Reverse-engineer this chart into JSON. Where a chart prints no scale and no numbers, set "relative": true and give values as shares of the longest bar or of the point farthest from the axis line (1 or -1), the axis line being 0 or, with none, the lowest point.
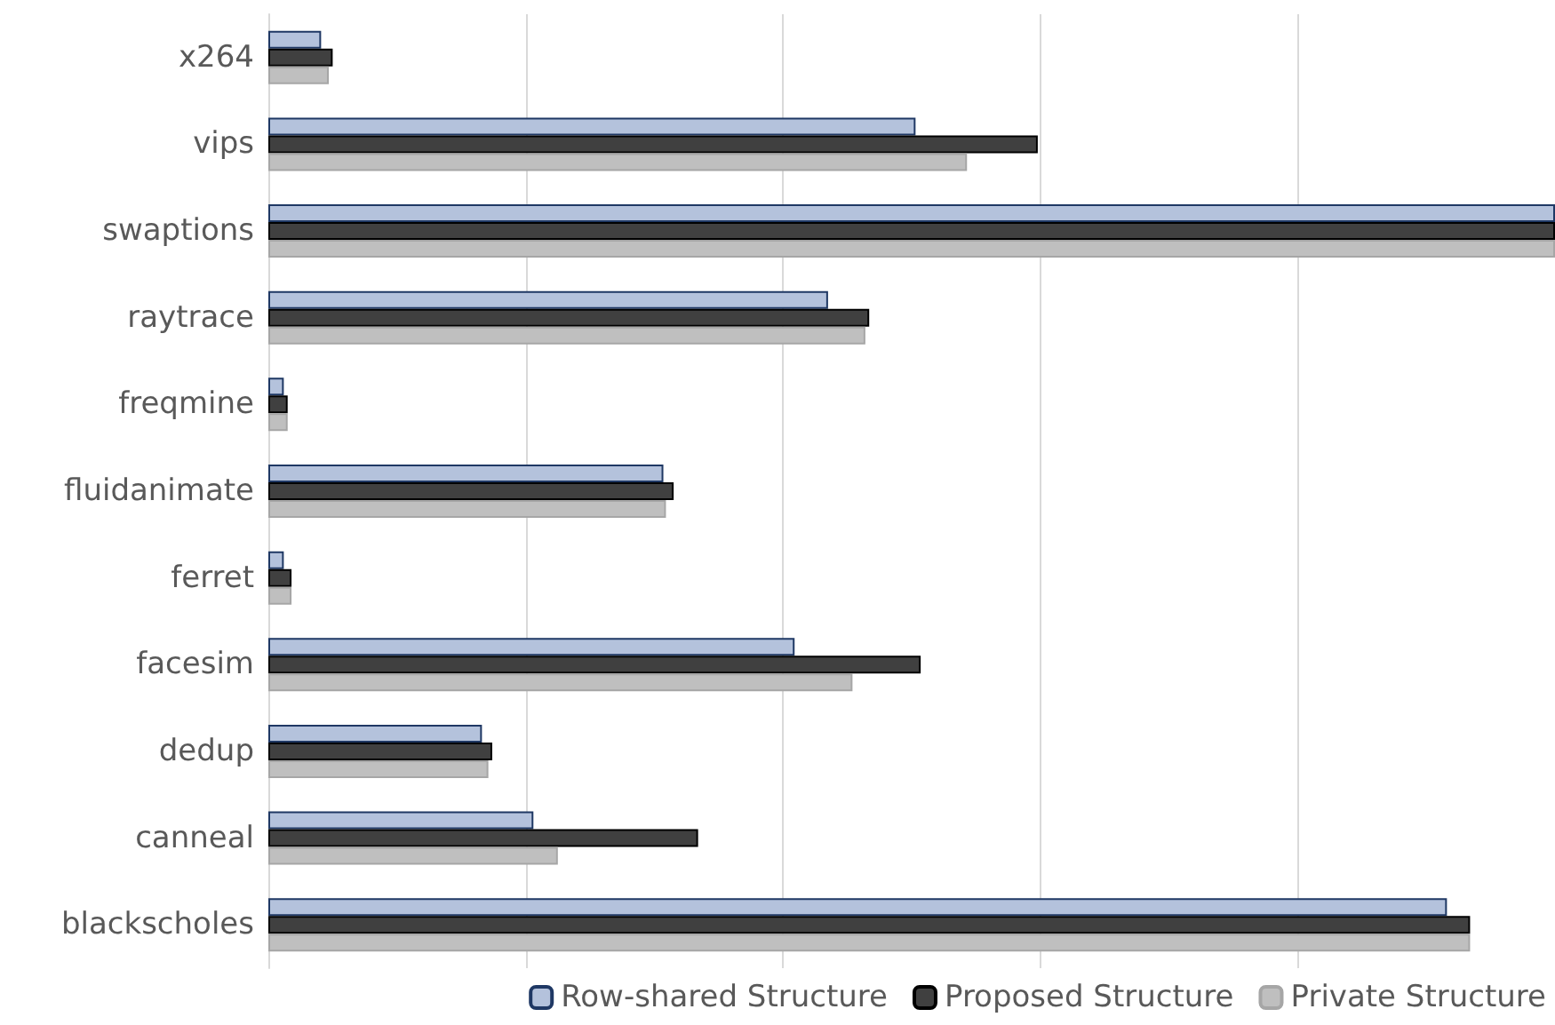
{
  "chart_data": {
    "type": "bar",
    "orientation": "horizontal",
    "relative": true,
    "grid": "x",
    "legend": "bottom",
    "categories": [
      "x264",
      "vips",
      "swaptions",
      "raytrace",
      "freqmine",
      "fluidanimate",
      "ferret",
      "facesim",
      "dedup",
      "canneal",
      "blackscholes"
    ],
    "series": [
      {
        "name": "Row-shared Structure",
        "color": "#b4c2dc",
        "values": [
          0.041,
          0.503,
          1,
          0.435,
          0.012,
          0.307,
          0.012,
          0.409,
          0.166,
          0.206,
          0.916
        ]
      },
      {
        "name": "Proposed Structure",
        "color": "#404040",
        "values": [
          0.05,
          0.598,
          1,
          0.467,
          0.015,
          0.315,
          0.018,
          0.507,
          0.174,
          0.334,
          0.934
        ]
      },
      {
        "name": "Private Structure",
        "color": "#bfbfbf",
        "values": [
          0.047,
          0.543,
          1,
          0.464,
          0.015,
          0.309,
          0.018,
          0.454,
          0.171,
          0.225,
          0.934
        ]
      }
    ]
  }
}
